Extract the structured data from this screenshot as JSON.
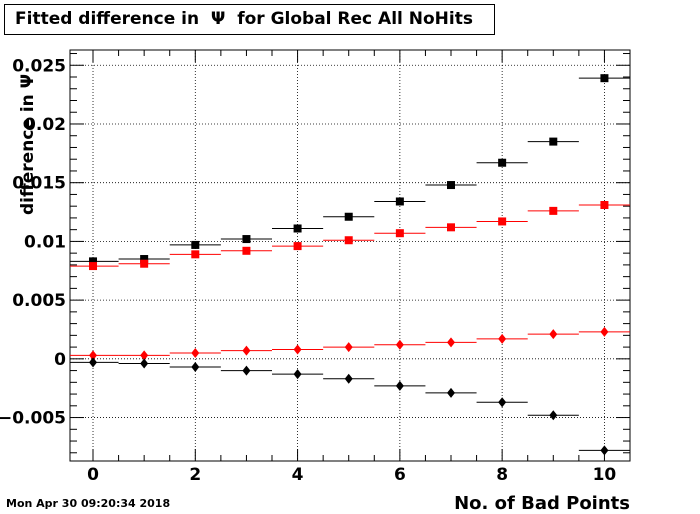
{
  "title": "Fitted difference in  Ψ  for Global Rec All NoHits",
  "timestamp": "Mon Apr 30 09:20:34 2018",
  "chart_data": {
    "type": "scatter",
    "title": "Fitted difference in  Ψ  for Global Rec All NoHits",
    "xlabel": "No. of Bad Points",
    "ylabel": "difference in Ψ",
    "xlim": [
      -0.45,
      10.5
    ],
    "ylim": [
      -0.0087,
      0.0263
    ],
    "x_ticks": [
      0,
      2,
      4,
      6,
      8,
      10
    ],
    "y_ticks": [
      -0.005,
      0,
      0.005,
      0.01,
      0.015,
      0.02,
      0.025
    ],
    "y_tick_labels": [
      "−0.005",
      "0",
      "0.005",
      "0.01",
      "0.015",
      "0.02",
      "0.025"
    ],
    "grid": true,
    "x_error_half_width": 0.5,
    "x": [
      0,
      1,
      2,
      3,
      4,
      5,
      6,
      7,
      8,
      9,
      10
    ],
    "series": [
      {
        "marker": "square",
        "color": "#000000",
        "values": [
          0.0083,
          0.0085,
          0.0097,
          0.0102,
          0.0111,
          0.0121,
          0.0134,
          0.0148,
          0.0167,
          0.0185,
          0.0239
        ]
      },
      {
        "marker": "square",
        "color": "#ff0000",
        "values": [
          0.0079,
          0.0081,
          0.0089,
          0.0092,
          0.0096,
          0.0101,
          0.0107,
          0.0112,
          0.0117,
          0.0126,
          0.0131
        ]
      },
      {
        "marker": "diamond",
        "color": "#ff0000",
        "values": [
          0.0003,
          0.0003,
          0.0005,
          0.0007,
          0.0008,
          0.001,
          0.0012,
          0.0014,
          0.0017,
          0.0021,
          0.0023
        ]
      },
      {
        "marker": "diamond",
        "color": "#000000",
        "values": [
          -0.0003,
          -0.0004,
          -0.0007,
          -0.001,
          -0.0013,
          -0.0017,
          -0.0023,
          -0.0029,
          -0.0037,
          -0.0048,
          -0.0078
        ]
      }
    ]
  }
}
